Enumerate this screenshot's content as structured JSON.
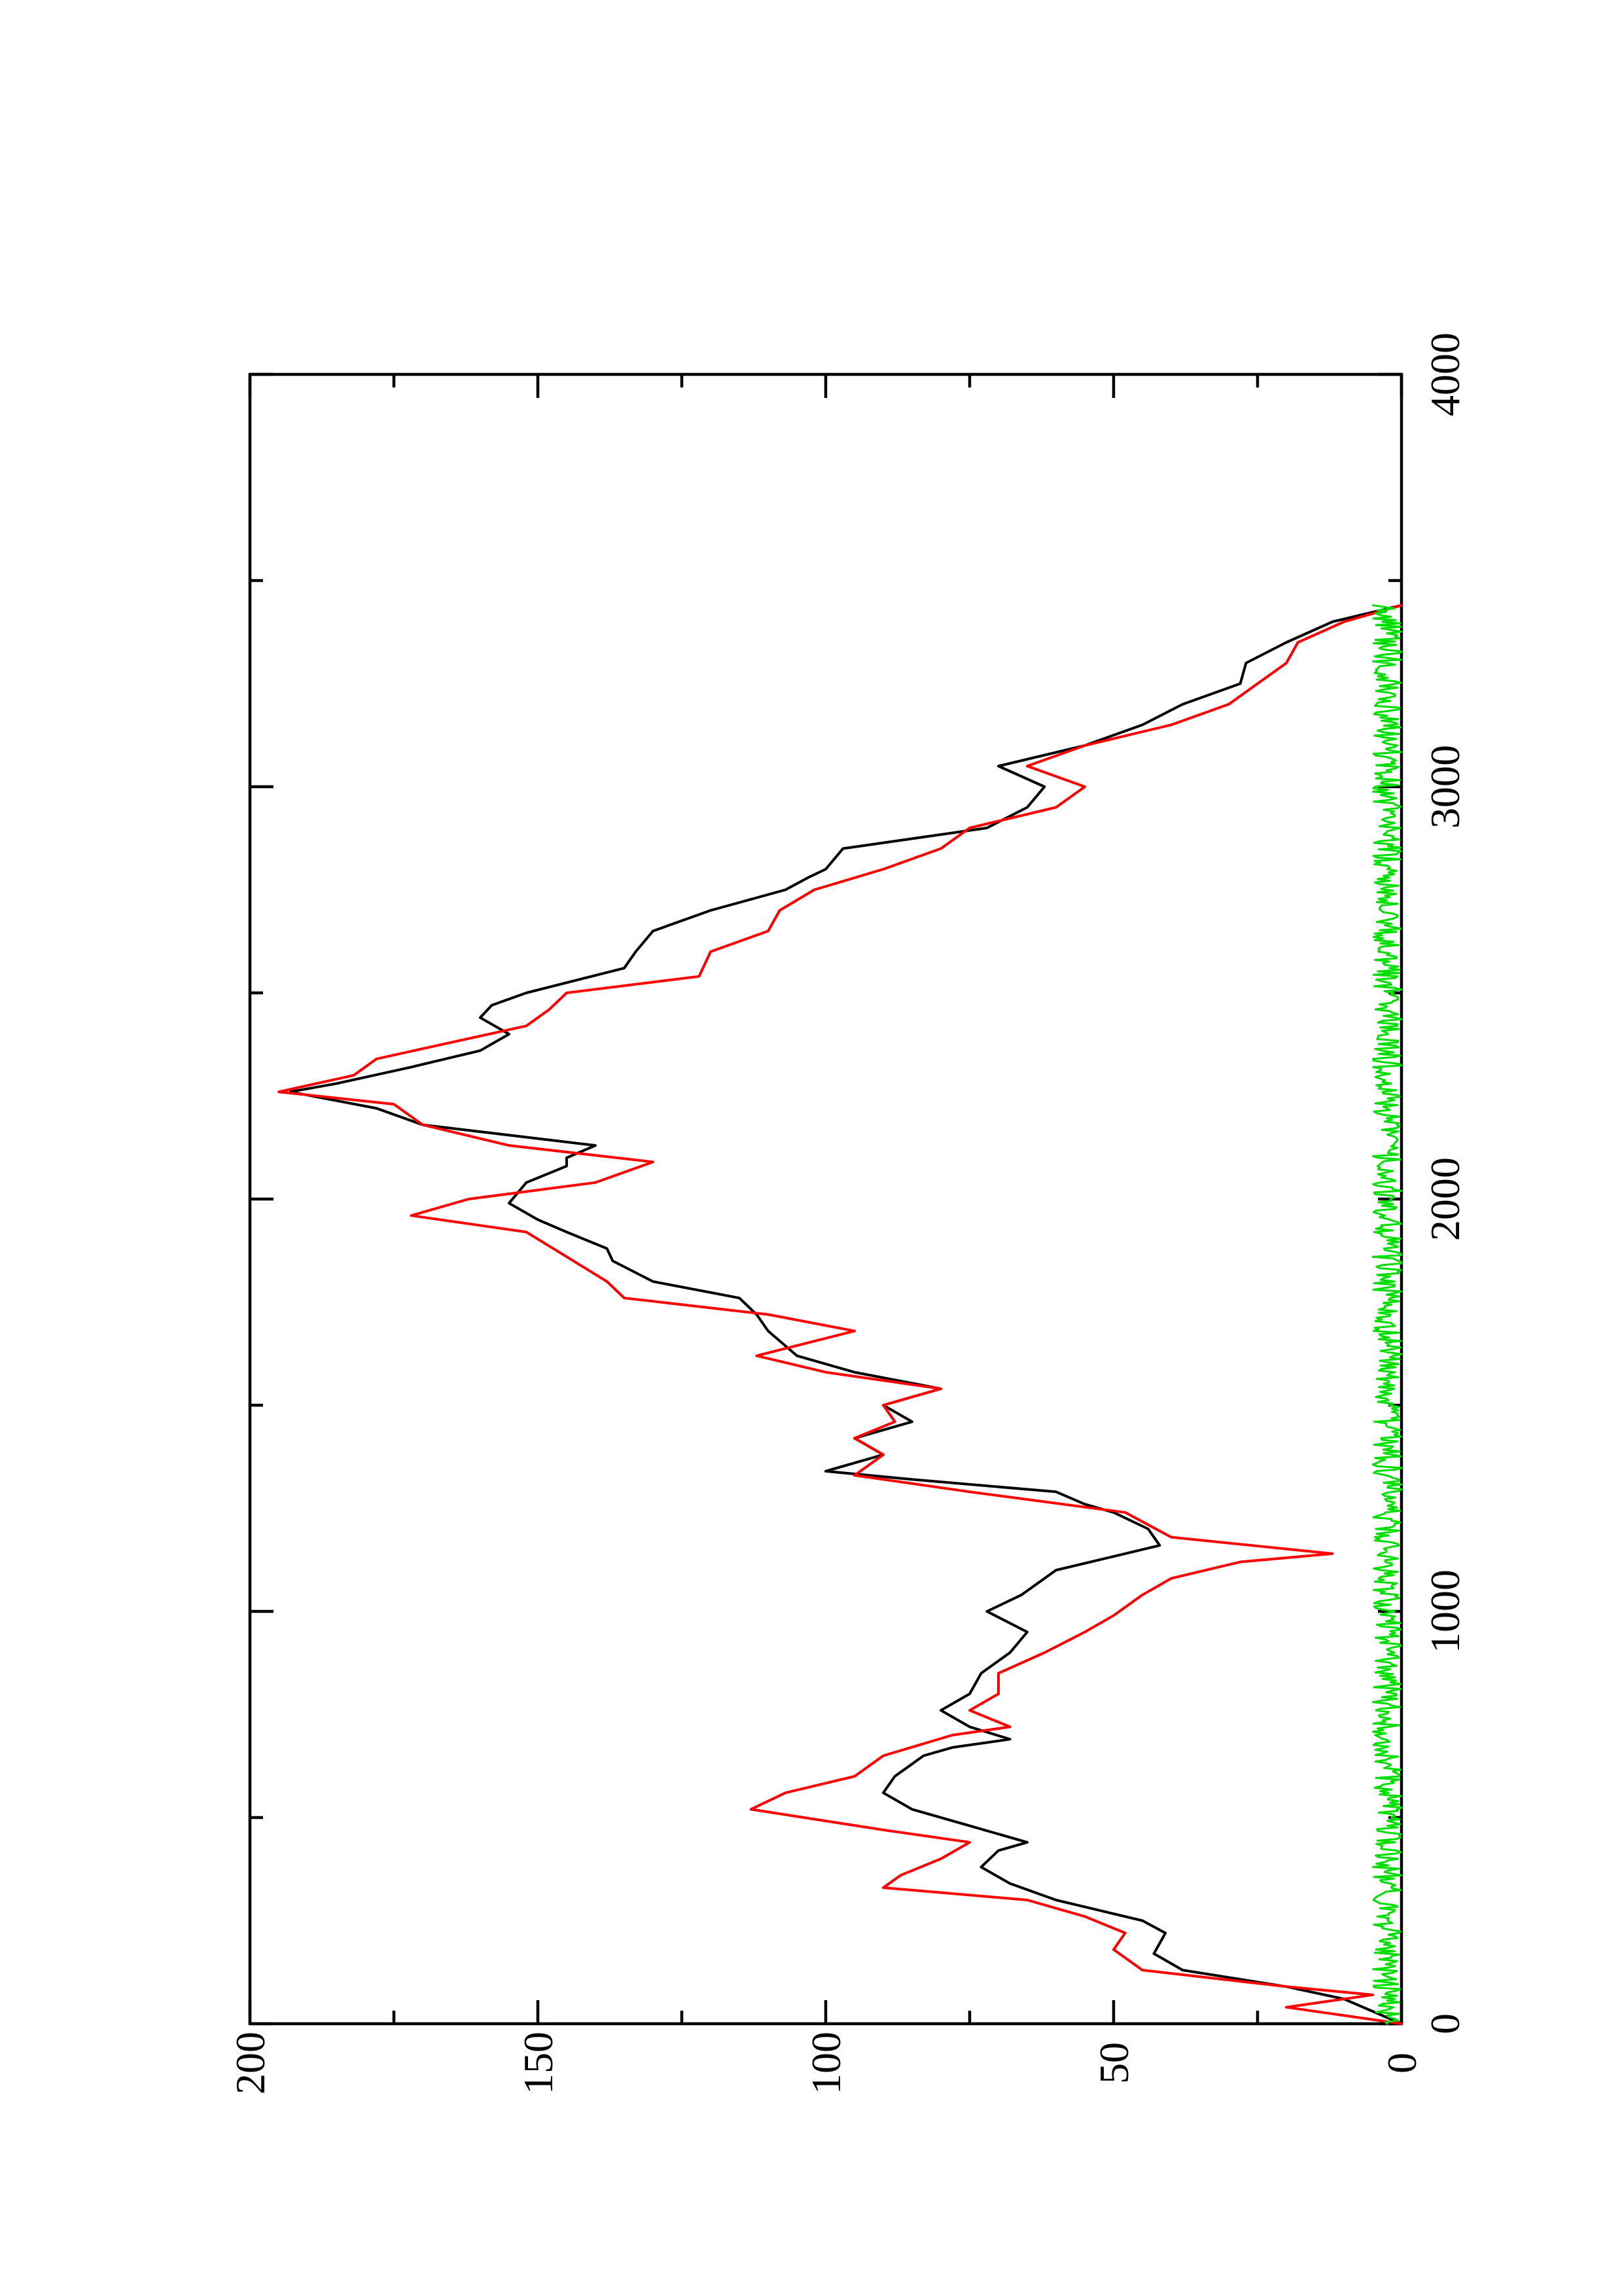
{
  "chart_data": {
    "type": "line",
    "orientation": "rotated-90-ccw",
    "title": "",
    "xlabel": "",
    "ylabel": "",
    "xlim": [
      0,
      4000
    ],
    "ylim": [
      0,
      200
    ],
    "x_ticks_major": [
      0,
      1000,
      2000,
      3000,
      4000
    ],
    "x_ticks_minor": [
      500,
      1500,
      2500,
      3500
    ],
    "y_ticks_major": [
      0,
      50,
      100,
      150,
      200
    ],
    "y_ticks_minor": [
      25,
      75,
      125,
      175
    ],
    "x_tick_labels": [
      "0",
      "1000",
      "2000",
      "3000",
      "4000"
    ],
    "y_tick_labels": [
      "0",
      "50",
      "100",
      "150",
      "200"
    ],
    "grid": false,
    "legend": "none",
    "series": [
      {
        "color": "#000000",
        "points": [
          [
            0,
            0
          ],
          [
            30,
            5
          ],
          [
            60,
            10
          ],
          [
            90,
            20
          ],
          [
            130,
            38
          ],
          [
            170,
            43
          ],
          [
            220,
            41
          ],
          [
            250,
            45
          ],
          [
            300,
            60
          ],
          [
            340,
            68
          ],
          [
            380,
            73
          ],
          [
            420,
            70
          ],
          [
            440,
            65
          ],
          [
            480,
            75
          ],
          [
            520,
            85
          ],
          [
            560,
            90
          ],
          [
            600,
            88
          ],
          [
            630,
            85
          ],
          [
            650,
            83
          ],
          [
            670,
            78
          ],
          [
            690,
            68
          ],
          [
            720,
            75
          ],
          [
            760,
            80
          ],
          [
            800,
            75
          ],
          [
            850,
            73
          ],
          [
            900,
            68
          ],
          [
            950,
            65
          ],
          [
            1000,
            72
          ],
          [
            1040,
            66
          ],
          [
            1100,
            60
          ],
          [
            1140,
            48
          ],
          [
            1160,
            42
          ],
          [
            1200,
            44
          ],
          [
            1240,
            50
          ],
          [
            1260,
            55
          ],
          [
            1290,
            60
          ],
          [
            1320,
            85
          ],
          [
            1340,
            100
          ],
          [
            1380,
            90
          ],
          [
            1420,
            95
          ],
          [
            1460,
            85
          ],
          [
            1500,
            90
          ],
          [
            1540,
            80
          ],
          [
            1580,
            95
          ],
          [
            1620,
            105
          ],
          [
            1680,
            110
          ],
          [
            1720,
            112
          ],
          [
            1760,
            115
          ],
          [
            1800,
            130
          ],
          [
            1850,
            137
          ],
          [
            1880,
            138
          ],
          [
            1920,
            145
          ],
          [
            1950,
            150
          ],
          [
            1990,
            155
          ],
          [
            2040,
            152
          ],
          [
            2080,
            145
          ],
          [
            2100,
            145
          ],
          [
            2130,
            140
          ],
          [
            2180,
            170
          ],
          [
            2220,
            178
          ],
          [
            2260,
            193
          ],
          [
            2280,
            185
          ],
          [
            2320,
            172
          ],
          [
            2360,
            160
          ],
          [
            2400,
            155
          ],
          [
            2440,
            160
          ],
          [
            2470,
            158
          ],
          [
            2500,
            152
          ],
          [
            2560,
            135
          ],
          [
            2600,
            133
          ],
          [
            2650,
            130
          ],
          [
            2700,
            120
          ],
          [
            2750,
            107
          ],
          [
            2780,
            103
          ],
          [
            2800,
            100
          ],
          [
            2850,
            97
          ],
          [
            2900,
            72
          ],
          [
            2950,
            65
          ],
          [
            3000,
            62
          ],
          [
            3050,
            70
          ],
          [
            3100,
            55
          ],
          [
            3150,
            45
          ],
          [
            3200,
            38
          ],
          [
            3250,
            28
          ],
          [
            3300,
            27
          ],
          [
            3350,
            20
          ],
          [
            3400,
            12
          ],
          [
            3440,
            0
          ]
        ]
      },
      {
        "color": "#ff0000",
        "points": [
          [
            0,
            0
          ],
          [
            20,
            10
          ],
          [
            40,
            20
          ],
          [
            70,
            5
          ],
          [
            90,
            20
          ],
          [
            130,
            45
          ],
          [
            180,
            50
          ],
          [
            220,
            48
          ],
          [
            260,
            55
          ],
          [
            300,
            65
          ],
          [
            330,
            90
          ],
          [
            360,
            87
          ],
          [
            400,
            80
          ],
          [
            440,
            75
          ],
          [
            470,
            90
          ],
          [
            520,
            113
          ],
          [
            560,
            107
          ],
          [
            600,
            95
          ],
          [
            650,
            90
          ],
          [
            700,
            78
          ],
          [
            720,
            68
          ],
          [
            760,
            75
          ],
          [
            800,
            70
          ],
          [
            850,
            70
          ],
          [
            900,
            62
          ],
          [
            950,
            55
          ],
          [
            990,
            50
          ],
          [
            1040,
            45
          ],
          [
            1080,
            40
          ],
          [
            1120,
            28
          ],
          [
            1140,
            12
          ],
          [
            1180,
            40
          ],
          [
            1240,
            48
          ],
          [
            1290,
            75
          ],
          [
            1330,
            95
          ],
          [
            1380,
            90
          ],
          [
            1420,
            95
          ],
          [
            1460,
            88
          ],
          [
            1500,
            90
          ],
          [
            1540,
            80
          ],
          [
            1580,
            100
          ],
          [
            1620,
            112
          ],
          [
            1680,
            95
          ],
          [
            1720,
            110
          ],
          [
            1760,
            135
          ],
          [
            1800,
            138
          ],
          [
            1860,
            145
          ],
          [
            1920,
            152
          ],
          [
            1960,
            172
          ],
          [
            2000,
            162
          ],
          [
            2040,
            140
          ],
          [
            2090,
            130
          ],
          [
            2130,
            155
          ],
          [
            2180,
            170
          ],
          [
            2230,
            175
          ],
          [
            2260,
            195
          ],
          [
            2300,
            182
          ],
          [
            2340,
            178
          ],
          [
            2380,
            165
          ],
          [
            2420,
            152
          ],
          [
            2460,
            148
          ],
          [
            2500,
            145
          ],
          [
            2540,
            122
          ],
          [
            2600,
            120
          ],
          [
            2650,
            110
          ],
          [
            2700,
            108
          ],
          [
            2750,
            102
          ],
          [
            2800,
            90
          ],
          [
            2850,
            80
          ],
          [
            2900,
            75
          ],
          [
            2950,
            60
          ],
          [
            3000,
            55
          ],
          [
            3050,
            65
          ],
          [
            3100,
            55
          ],
          [
            3150,
            40
          ],
          [
            3200,
            30
          ],
          [
            3250,
            25
          ],
          [
            3300,
            20
          ],
          [
            3350,
            18
          ],
          [
            3400,
            10
          ],
          [
            3440,
            0
          ]
        ]
      },
      {
        "color": "#00dd00",
        "amplitude": 2.5,
        "x_range": [
          0,
          3440
        ]
      }
    ]
  }
}
